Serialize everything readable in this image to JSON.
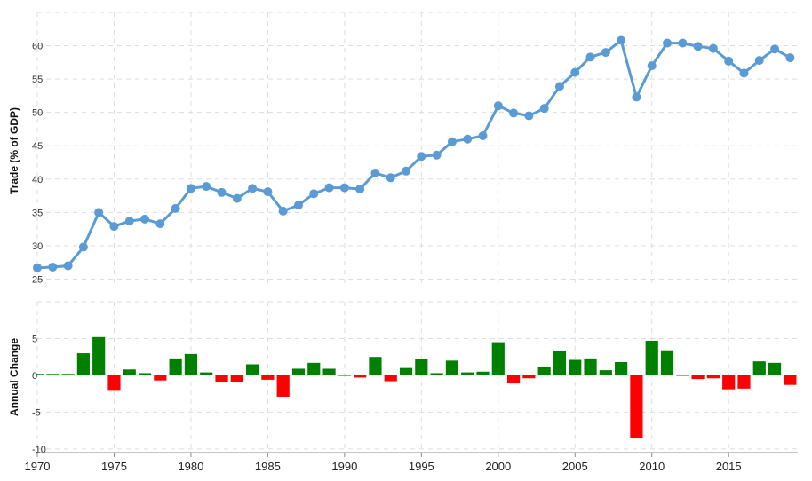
{
  "chart_data": [
    {
      "type": "line",
      "ylabel": "Trade (% of GDP)",
      "x": [
        1970,
        1971,
        1972,
        1973,
        1974,
        1975,
        1976,
        1977,
        1978,
        1979,
        1980,
        1981,
        1982,
        1983,
        1984,
        1985,
        1986,
        1987,
        1988,
        1989,
        1990,
        1991,
        1992,
        1993,
        1994,
        1995,
        1996,
        1997,
        1998,
        1999,
        2000,
        2001,
        2002,
        2003,
        2004,
        2005,
        2006,
        2007,
        2008,
        2009,
        2010,
        2011,
        2012,
        2013,
        2014,
        2015,
        2016,
        2017,
        2018,
        2019
      ],
      "values": [
        26.7,
        26.8,
        27.0,
        29.8,
        35.0,
        32.9,
        33.7,
        34.0,
        33.3,
        35.6,
        38.6,
        38.9,
        38.0,
        37.1,
        38.6,
        38.1,
        35.2,
        36.1,
        37.8,
        38.7,
        38.7,
        38.5,
        40.9,
        40.2,
        41.2,
        43.4,
        43.6,
        45.6,
        46.0,
        46.5,
        51.0,
        49.9,
        49.5,
        50.6,
        53.9,
        56.0,
        58.3,
        59.0,
        60.8,
        52.3,
        57.0,
        60.4,
        60.4,
        59.9,
        59.6,
        57.7,
        55.9,
        57.8,
        59.5,
        58.2
      ],
      "yticks": [
        25,
        30,
        35,
        40,
        45,
        50,
        55,
        60
      ],
      "ylim": [
        24,
        65
      ],
      "color": "#5b9bd5",
      "grid": true
    },
    {
      "type": "bar",
      "ylabel": "Annual Change",
      "x": [
        1970,
        1971,
        1972,
        1973,
        1974,
        1975,
        1976,
        1977,
        1978,
        1979,
        1980,
        1981,
        1982,
        1983,
        1984,
        1985,
        1986,
        1987,
        1988,
        1989,
        1990,
        1991,
        1992,
        1993,
        1994,
        1995,
        1996,
        1997,
        1998,
        1999,
        2000,
        2001,
        2002,
        2003,
        2004,
        2005,
        2006,
        2007,
        2008,
        2009,
        2010,
        2011,
        2012,
        2013,
        2014,
        2015,
        2016,
        2017,
        2018,
        2019
      ],
      "values": [
        0.2,
        0.2,
        0.2,
        3.0,
        5.2,
        -2.1,
        0.8,
        0.3,
        -0.7,
        2.3,
        2.9,
        0.4,
        -0.9,
        -0.9,
        1.5,
        -0.6,
        -2.9,
        0.9,
        1.7,
        0.9,
        0.05,
        -0.3,
        2.5,
        -0.8,
        1.0,
        2.2,
        0.3,
        2.0,
        0.4,
        0.5,
        4.5,
        -1.1,
        -0.4,
        1.2,
        3.3,
        2.1,
        2.3,
        0.7,
        1.8,
        -8.5,
        4.7,
        3.4,
        0.05,
        -0.5,
        -0.4,
        -1.9,
        -1.8,
        1.9,
        1.7,
        -1.3
      ],
      "yticks": [
        -10,
        -5,
        0,
        5
      ],
      "ylim": [
        -10.5,
        10
      ],
      "positive_color": "#008000",
      "negative_color": "#ff0000",
      "grid": true
    }
  ],
  "xaxis": {
    "tick_labels": [
      "1970",
      "1975",
      "1980",
      "1985",
      "1990",
      "1995",
      "2000",
      "2005",
      "2010",
      "2015"
    ],
    "tick_values": [
      1970,
      1975,
      1980,
      1985,
      1990,
      1995,
      2000,
      2005,
      2010,
      2015
    ],
    "range": [
      1970,
      2019.5
    ]
  }
}
